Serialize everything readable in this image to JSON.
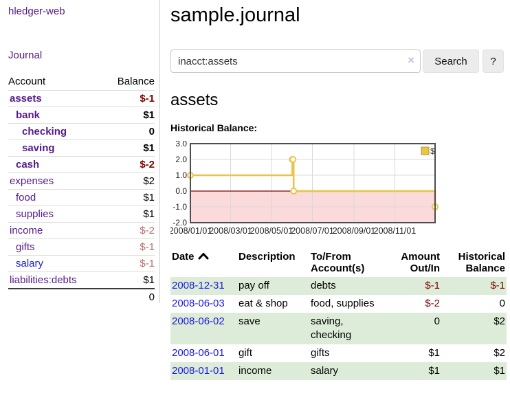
{
  "app": {
    "title": "hledger-web",
    "nav_journal": "Journal"
  },
  "colors": {
    "link_purple": "#551a8b",
    "link_blue": "#1b1be0",
    "negative_strong": "#7d0000",
    "negative_soft": "#bc6c6c",
    "row_stripe_green": "#ddecd8"
  },
  "sidebar": {
    "accounts_table": {
      "col_account": "Account",
      "col_balance": "Balance",
      "rows": [
        {
          "name": "assets",
          "depth": 1,
          "balance": "$-1",
          "bold": true,
          "negative": "strong"
        },
        {
          "name": "bank",
          "depth": 2,
          "balance": "$1",
          "bold": true
        },
        {
          "name": "checking",
          "depth": 3,
          "balance": "0",
          "bold": true
        },
        {
          "name": "saving",
          "depth": 3,
          "balance": "$1",
          "bold": true
        },
        {
          "name": "cash",
          "depth": 2,
          "balance": "$-2",
          "bold": true,
          "negative": "strong"
        },
        {
          "name": "expenses",
          "depth": 1,
          "balance": "$2"
        },
        {
          "name": "food",
          "depth": 2,
          "balance": "$1"
        },
        {
          "name": "supplies",
          "depth": 2,
          "balance": "$1"
        },
        {
          "name": "income",
          "depth": 1,
          "balance": "$-2",
          "negative": "soft"
        },
        {
          "name": "gifts",
          "depth": 2,
          "balance": "$-1",
          "negative": "soft"
        },
        {
          "name": "salary",
          "depth": 2,
          "balance": "$-1",
          "negative": "soft",
          "link_style": "blue"
        },
        {
          "name": "liabilities:debts",
          "depth": 1,
          "balance": "$1"
        }
      ],
      "total": "0"
    }
  },
  "header": {
    "title": "sample.journal"
  },
  "search": {
    "value": "inacct:assets",
    "clear_icon": "×",
    "button": "Search",
    "help_button": "?"
  },
  "account_page": {
    "heading": "assets",
    "chart_label": "Historical Balance:"
  },
  "chart_data": {
    "type": "line",
    "step": true,
    "title": "Historical Balance:",
    "x_range": [
      "2008-01-01",
      "2008-12-31"
    ],
    "ylim": [
      -2,
      3
    ],
    "y_ticks": [
      3,
      2,
      1,
      0,
      -1,
      -2
    ],
    "y_tick_labels": [
      "3.0",
      "2.0",
      "1.0",
      "0.0",
      "-1.0",
      "-2.0"
    ],
    "x_ticks": [
      {
        "date": "2008-01-01",
        "label": "2008/01/01"
      },
      {
        "date": "2008-03-01",
        "label": "2008/03/01"
      },
      {
        "date": "2008-05-01",
        "label": "2008/05/01"
      },
      {
        "date": "2008-07-01",
        "label": "2008/07/01"
      },
      {
        "date": "2008-09-01",
        "label": "2008/09/01"
      },
      {
        "date": "2008-11-01",
        "label": "2008/11/01"
      }
    ],
    "series": [
      {
        "name": "$",
        "points": [
          [
            "2008-01-01",
            1
          ],
          [
            "2008-06-01",
            2
          ],
          [
            "2008-06-02",
            2
          ],
          [
            "2008-06-03",
            0
          ],
          [
            "2008-12-31",
            -1
          ]
        ]
      }
    ],
    "legend": {
      "label": "$",
      "position": "top-right"
    },
    "grid": true,
    "colors": {
      "line": "#e8c44a",
      "legend_border": "#b89428",
      "negative_region": "#fadada",
      "zero_line": "#800000",
      "grid": "#d9d9d9",
      "border": "#4d4d4d",
      "tick_text": "#222"
    }
  },
  "register_table": {
    "headers": [
      {
        "lines": [
          "Date"
        ],
        "align": "left",
        "sort_icon": "chevron-up"
      },
      {
        "lines": [
          "Description"
        ],
        "align": "left"
      },
      {
        "lines": [
          "To/From",
          "Account(s)"
        ],
        "align": "left"
      },
      {
        "lines": [
          "Amount",
          "Out/In"
        ],
        "align": "right"
      },
      {
        "lines": [
          "Historical",
          "Balance"
        ],
        "align": "right"
      }
    ],
    "rows": [
      {
        "date": "2008-12-31",
        "description": "pay off",
        "accounts": "debts",
        "amount": "$-1",
        "amount_neg": true,
        "balance": "$-1",
        "balance_neg": true
      },
      {
        "date": "2008-06-03",
        "description": "eat & shop",
        "accounts": "food, supplies",
        "amount": "$-2",
        "amount_neg": true,
        "balance": "0"
      },
      {
        "date": "2008-06-02",
        "description": "save",
        "accounts": "saving, checking",
        "amount": "0",
        "balance": "$2"
      },
      {
        "date": "2008-06-01",
        "description": "gift",
        "accounts": "gifts",
        "amount": "$1",
        "balance": "$2"
      },
      {
        "date": "2008-01-01",
        "description": "income",
        "accounts": "salary",
        "amount": "$1",
        "balance": "$1"
      }
    ]
  }
}
